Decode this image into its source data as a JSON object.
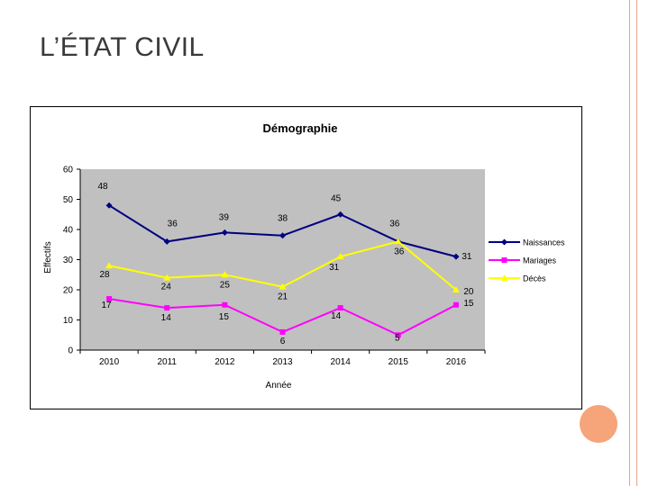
{
  "slide": {
    "title": "L’ÉTAT CIVIL"
  },
  "colors": {
    "accent_line": "#e8a38a",
    "accent_circle": "#f6a47a"
  },
  "chart_data": {
    "type": "line",
    "title": "Démographie",
    "xlabel": "Année",
    "ylabel": "Effectifs",
    "categories": [
      "2010",
      "2011",
      "2012",
      "2013",
      "2014",
      "2015",
      "2016"
    ],
    "ylim": [
      0,
      60
    ],
    "yticks": [
      0,
      10,
      20,
      30,
      40,
      50,
      60
    ],
    "grid": false,
    "legend_position": "right",
    "series": [
      {
        "name": "Naissances",
        "values": [
          48,
          36,
          39,
          38,
          45,
          36,
          31
        ],
        "color": "#000080",
        "marker": "diamond"
      },
      {
        "name": "Mariages",
        "values": [
          17,
          14,
          15,
          6,
          14,
          5,
          15
        ],
        "color": "#ff00ff",
        "marker": "square"
      },
      {
        "name": "Décès",
        "values": [
          28,
          24,
          25,
          21,
          31,
          36,
          20
        ],
        "color": "#ffff00",
        "marker": "triangle"
      }
    ]
  }
}
